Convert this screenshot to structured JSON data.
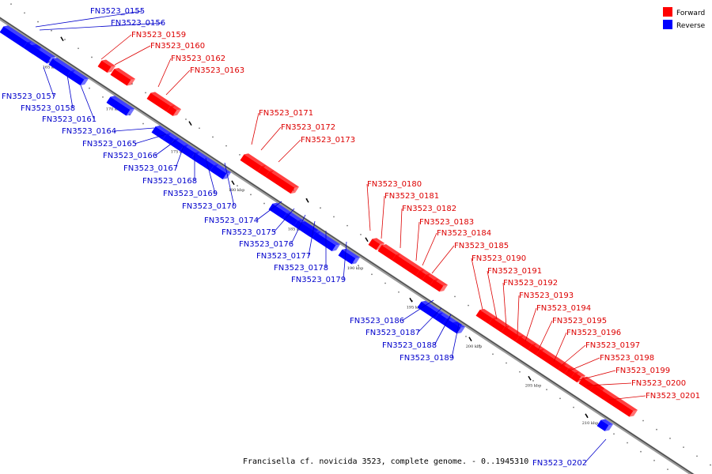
{
  "caption": "Francisella cf. novicida 3523, complete genome. - 0..1945310",
  "legend": {
    "forward": {
      "label": "Forward",
      "color": "#ff0000"
    },
    "reverse": {
      "label": "Reverse",
      "color": "#0000ff"
    }
  },
  "ticks": [
    "165 kbp",
    "170 kbp",
    "175 kbp",
    "180 kbp",
    "185 kbp",
    "190 kbp",
    "195 kbp",
    "200 kbp",
    "205 kbp",
    "210 kbp"
  ],
  "genes": [
    {
      "id": "FN3523_0155",
      "strand": "reverse"
    },
    {
      "id": "FN3523_0156",
      "strand": "reverse"
    },
    {
      "id": "FN3523_0157",
      "strand": "reverse"
    },
    {
      "id": "FN3523_0158",
      "strand": "reverse"
    },
    {
      "id": "FN3523_0159",
      "strand": "forward"
    },
    {
      "id": "FN3523_0160",
      "strand": "forward"
    },
    {
      "id": "FN3523_0161",
      "strand": "reverse"
    },
    {
      "id": "FN3523_0162",
      "strand": "forward"
    },
    {
      "id": "FN3523_0163",
      "strand": "forward"
    },
    {
      "id": "FN3523_0164",
      "strand": "reverse"
    },
    {
      "id": "FN3523_0165",
      "strand": "reverse"
    },
    {
      "id": "FN3523_0166",
      "strand": "reverse"
    },
    {
      "id": "FN3523_0167",
      "strand": "reverse"
    },
    {
      "id": "FN3523_0168",
      "strand": "reverse"
    },
    {
      "id": "FN3523_0169",
      "strand": "reverse"
    },
    {
      "id": "FN3523_0170",
      "strand": "reverse"
    },
    {
      "id": "FN3523_0171",
      "strand": "forward"
    },
    {
      "id": "FN3523_0172",
      "strand": "forward"
    },
    {
      "id": "FN3523_0173",
      "strand": "forward"
    },
    {
      "id": "FN3523_0174",
      "strand": "reverse"
    },
    {
      "id": "FN3523_0175",
      "strand": "reverse"
    },
    {
      "id": "FN3523_0176",
      "strand": "reverse"
    },
    {
      "id": "FN3523_0177",
      "strand": "reverse"
    },
    {
      "id": "FN3523_0178",
      "strand": "reverse"
    },
    {
      "id": "FN3523_0179",
      "strand": "reverse"
    },
    {
      "id": "FN3523_0180",
      "strand": "forward"
    },
    {
      "id": "FN3523_0181",
      "strand": "forward"
    },
    {
      "id": "FN3523_0182",
      "strand": "forward"
    },
    {
      "id": "FN3523_0183",
      "strand": "forward"
    },
    {
      "id": "FN3523_0184",
      "strand": "forward"
    },
    {
      "id": "FN3523_0185",
      "strand": "forward"
    },
    {
      "id": "FN3523_0186",
      "strand": "reverse"
    },
    {
      "id": "FN3523_0187",
      "strand": "reverse"
    },
    {
      "id": "FN3523_0188",
      "strand": "reverse"
    },
    {
      "id": "FN3523_0189",
      "strand": "reverse"
    },
    {
      "id": "FN3523_0190",
      "strand": "forward"
    },
    {
      "id": "FN3523_0191",
      "strand": "forward"
    },
    {
      "id": "FN3523_0192",
      "strand": "forward"
    },
    {
      "id": "FN3523_0193",
      "strand": "forward"
    },
    {
      "id": "FN3523_0194",
      "strand": "forward"
    },
    {
      "id": "FN3523_0195",
      "strand": "forward"
    },
    {
      "id": "FN3523_0196",
      "strand": "forward"
    },
    {
      "id": "FN3523_0197",
      "strand": "forward"
    },
    {
      "id": "FN3523_0198",
      "strand": "forward"
    },
    {
      "id": "FN3523_0199",
      "strand": "forward"
    },
    {
      "id": "FN3523_0200",
      "strand": "forward"
    },
    {
      "id": "FN3523_0201",
      "strand": "forward"
    },
    {
      "id": "FN3523_0202",
      "strand": "reverse"
    }
  ]
}
